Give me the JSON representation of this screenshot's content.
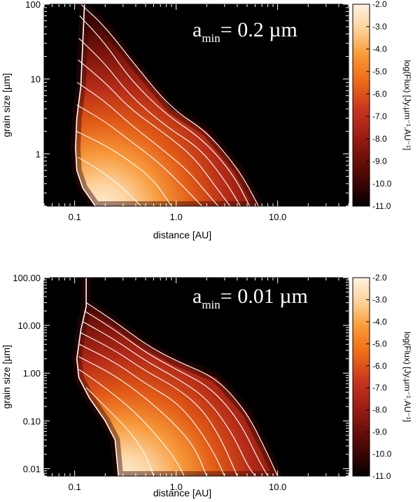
{
  "chart_data": [
    {
      "type": "heatmap",
      "panel": "top",
      "annotation": {
        "prefix": "a",
        "subscript": "min",
        "text": "= 0.2 µm"
      },
      "xlabel": "distance [AU]",
      "ylabel": "grain size [µm]",
      "xlim": [
        0.05,
        50
      ],
      "ylim": [
        0.2,
        100
      ],
      "x_scale": "log",
      "y_scale": "log",
      "xticks": [
        {
          "value": 0.1,
          "label": "0.1"
        },
        {
          "value": 1,
          "label": "1.0"
        },
        {
          "value": 10,
          "label": "10.0"
        }
      ],
      "yticks": [
        {
          "value": 1,
          "label": "1"
        },
        {
          "value": 10,
          "label": "10"
        },
        {
          "value": 100,
          "label": "100"
        }
      ],
      "sublimation_edge": [
        [
          0.125,
          100
        ],
        [
          0.115,
          8
        ],
        [
          0.105,
          3
        ],
        [
          0.102,
          1.2
        ],
        [
          0.105,
          0.6
        ],
        [
          0.12,
          0.35
        ],
        [
          0.16,
          0.2
        ]
      ],
      "contour_curves": [
        [
          [
            0.115,
            100
          ],
          [
            0.2,
            50
          ],
          [
            0.4,
            15
          ],
          [
            0.9,
            4
          ],
          [
            2.0,
            2
          ],
          [
            4.2,
            0.6
          ],
          [
            6.5,
            0.2
          ]
        ],
        [
          [
            0.112,
            70
          ],
          [
            0.2,
            30
          ],
          [
            0.35,
            10
          ],
          [
            0.8,
            3.3
          ],
          [
            1.8,
            1.6
          ],
          [
            3.6,
            0.55
          ],
          [
            5.3,
            0.2
          ]
        ],
        [
          [
            0.11,
            35
          ],
          [
            0.2,
            16
          ],
          [
            0.35,
            6
          ],
          [
            0.8,
            2.3
          ],
          [
            1.7,
            1.2
          ],
          [
            3.0,
            0.45
          ],
          [
            4.3,
            0.2
          ]
        ],
        [
          [
            0.108,
            18
          ],
          [
            0.2,
            9
          ],
          [
            0.35,
            4
          ],
          [
            0.8,
            1.8
          ],
          [
            1.5,
            0.9
          ],
          [
            2.5,
            0.35
          ],
          [
            3.4,
            0.2
          ]
        ],
        [
          [
            0.106,
            9
          ],
          [
            0.2,
            5
          ],
          [
            0.35,
            2.5
          ],
          [
            0.7,
            1.2
          ],
          [
            1.3,
            0.6
          ],
          [
            2.0,
            0.3
          ],
          [
            2.6,
            0.2
          ]
        ],
        [
          [
            0.105,
            4.5
          ],
          [
            0.2,
            2.7
          ],
          [
            0.35,
            1.5
          ],
          [
            0.65,
            0.8
          ],
          [
            1.1,
            0.4
          ],
          [
            1.8,
            0.2
          ]
        ],
        [
          [
            0.104,
            2.0
          ],
          [
            0.2,
            1.3
          ],
          [
            0.35,
            0.8
          ],
          [
            0.6,
            0.45
          ],
          [
            0.9,
            0.2
          ]
        ],
        [
          [
            0.108,
            0.9
          ],
          [
            0.18,
            0.6
          ],
          [
            0.3,
            0.35
          ],
          [
            0.45,
            0.2
          ]
        ]
      ],
      "colorbar": {
        "label": "log(Flux) [Jy.µm⁻¹.AU⁻¹]",
        "range": [
          -11.0,
          -2.0
        ],
        "ticks": [
          -2.0,
          -3.0,
          -4.0,
          -5.0,
          -6.0,
          -7.0,
          -8.0,
          -9.0,
          -10.0,
          -11.0
        ],
        "tick_labels": [
          "-2.0",
          "-3.0",
          "-4.0",
          "-5.0",
          "-6.0",
          "-7.0",
          "-8.0",
          "-9.0",
          "-10.0",
          "-11.0"
        ]
      }
    },
    {
      "type": "heatmap",
      "panel": "bottom",
      "annotation": {
        "prefix": "a",
        "subscript": "min",
        "text": "= 0.01 µm"
      },
      "xlabel": "distance [AU]",
      "ylabel": "grain size [µm]",
      "xlim": [
        0.05,
        50
      ],
      "ylim": [
        0.007,
        100
      ],
      "x_scale": "log",
      "y_scale": "log",
      "xticks": [
        {
          "value": 0.1,
          "label": "0.1"
        },
        {
          "value": 1,
          "label": "1.0"
        },
        {
          "value": 10,
          "label": "10.0"
        }
      ],
      "yticks": [
        {
          "value": 0.01,
          "label": "0.01"
        },
        {
          "value": 0.1,
          "label": "0.10"
        },
        {
          "value": 1,
          "label": "1.00"
        },
        {
          "value": 10,
          "label": "10.00"
        },
        {
          "value": 100,
          "label": "100.00"
        }
      ],
      "sublimation_edge": [
        [
          0.13,
          100
        ],
        [
          0.13,
          25
        ],
        [
          0.115,
          8
        ],
        [
          0.105,
          2
        ],
        [
          0.11,
          0.8
        ],
        [
          0.14,
          0.3
        ],
        [
          0.2,
          0.1
        ],
        [
          0.25,
          0.04
        ],
        [
          0.27,
          0.007
        ]
      ],
      "contour_curves": [
        [
          [
            0.13,
            30
          ],
          [
            0.25,
            12
          ],
          [
            0.5,
            4
          ],
          [
            1.0,
            1.8
          ],
          [
            2.5,
            0.8
          ],
          [
            5.0,
            0.15
          ],
          [
            8.0,
            0.02
          ],
          [
            10.0,
            0.007
          ]
        ],
        [
          [
            0.125,
            20
          ],
          [
            0.25,
            8
          ],
          [
            0.5,
            2.7
          ],
          [
            1.0,
            1.2
          ],
          [
            2.2,
            0.5
          ],
          [
            4.2,
            0.1
          ],
          [
            6.5,
            0.015
          ],
          [
            8.0,
            0.007
          ]
        ],
        [
          [
            0.12,
            12
          ],
          [
            0.25,
            5
          ],
          [
            0.5,
            1.8
          ],
          [
            1.0,
            0.8
          ],
          [
            2.0,
            0.3
          ],
          [
            3.5,
            0.06
          ],
          [
            5.0,
            0.012
          ],
          [
            6.0,
            0.007
          ]
        ],
        [
          [
            0.115,
            7
          ],
          [
            0.25,
            3
          ],
          [
            0.5,
            1.1
          ],
          [
            1.0,
            0.5
          ],
          [
            1.8,
            0.18
          ],
          [
            2.8,
            0.04
          ],
          [
            4.0,
            0.007
          ]
        ],
        [
          [
            0.112,
            4
          ],
          [
            0.25,
            1.7
          ],
          [
            0.5,
            0.6
          ],
          [
            1.0,
            0.25
          ],
          [
            1.6,
            0.08
          ],
          [
            2.4,
            0.02
          ],
          [
            3.0,
            0.007
          ]
        ],
        [
          [
            0.11,
            2.2
          ],
          [
            0.25,
            0.9
          ],
          [
            0.5,
            0.3
          ],
          [
            0.9,
            0.1
          ],
          [
            1.5,
            0.03
          ],
          [
            2.0,
            0.007
          ]
        ],
        [
          [
            0.11,
            1.2
          ],
          [
            0.2,
            0.5
          ],
          [
            0.4,
            0.15
          ],
          [
            0.7,
            0.04
          ],
          [
            1.0,
            0.015
          ],
          [
            1.2,
            0.007
          ]
        ],
        [
          [
            0.13,
            0.5
          ],
          [
            0.2,
            0.2
          ],
          [
            0.35,
            0.06
          ],
          [
            0.5,
            0.02
          ],
          [
            0.6,
            0.007
          ]
        ]
      ],
      "colorbar": {
        "label": "log(Flux) [Jy.µm⁻¹.AU⁻¹]",
        "range": [
          -11.0,
          -2.0
        ],
        "ticks": [
          -2.0,
          -3.0,
          -4.0,
          -5.0,
          -6.0,
          -7.0,
          -8.0,
          -9.0,
          -10.0,
          -11.0
        ],
        "tick_labels": [
          "-2.0",
          "-3.0",
          "-4.0",
          "-5.0",
          "-6.0",
          "-7.0",
          "-8.0",
          "-9.0",
          "-10.0",
          "-11.0"
        ]
      }
    }
  ]
}
